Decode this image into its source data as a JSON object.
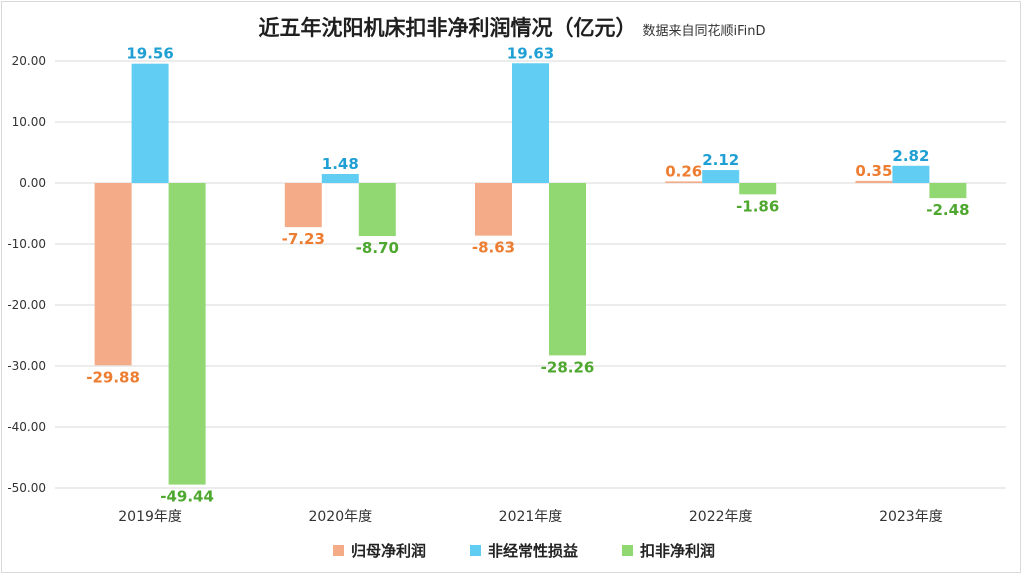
{
  "chart_data": {
    "type": "bar",
    "title": "近五年沈阳机床扣非净利润情况（亿元）",
    "subtitle": "数据来自同花顺iFinD",
    "categories": [
      "2019年度",
      "2020年度",
      "2021年度",
      "2022年度",
      "2023年度"
    ],
    "series": [
      {
        "name": "归母净利润",
        "color": "#f4ac88",
        "label_color": "#ed7d31",
        "values": [
          -29.88,
          -7.23,
          -8.63,
          0.26,
          0.35
        ]
      },
      {
        "name": "非经常性损益",
        "color": "#62cdf3",
        "label_color": "#1f9fd3",
        "values": [
          19.56,
          1.48,
          19.63,
          2.12,
          2.82
        ]
      },
      {
        "name": "扣非净利润",
        "color": "#92d872",
        "label_color": "#4ea72e",
        "values": [
          -49.44,
          -8.7,
          -28.26,
          -1.86,
          -2.48
        ]
      }
    ],
    "ylim": [
      -50,
      20
    ],
    "yticks": [
      "20.00",
      "10.00",
      "0.00",
      "-10.00",
      "-20.00",
      "-30.00",
      "-40.00",
      "-50.00"
    ],
    "grid": true,
    "legend_position": "bottom"
  }
}
